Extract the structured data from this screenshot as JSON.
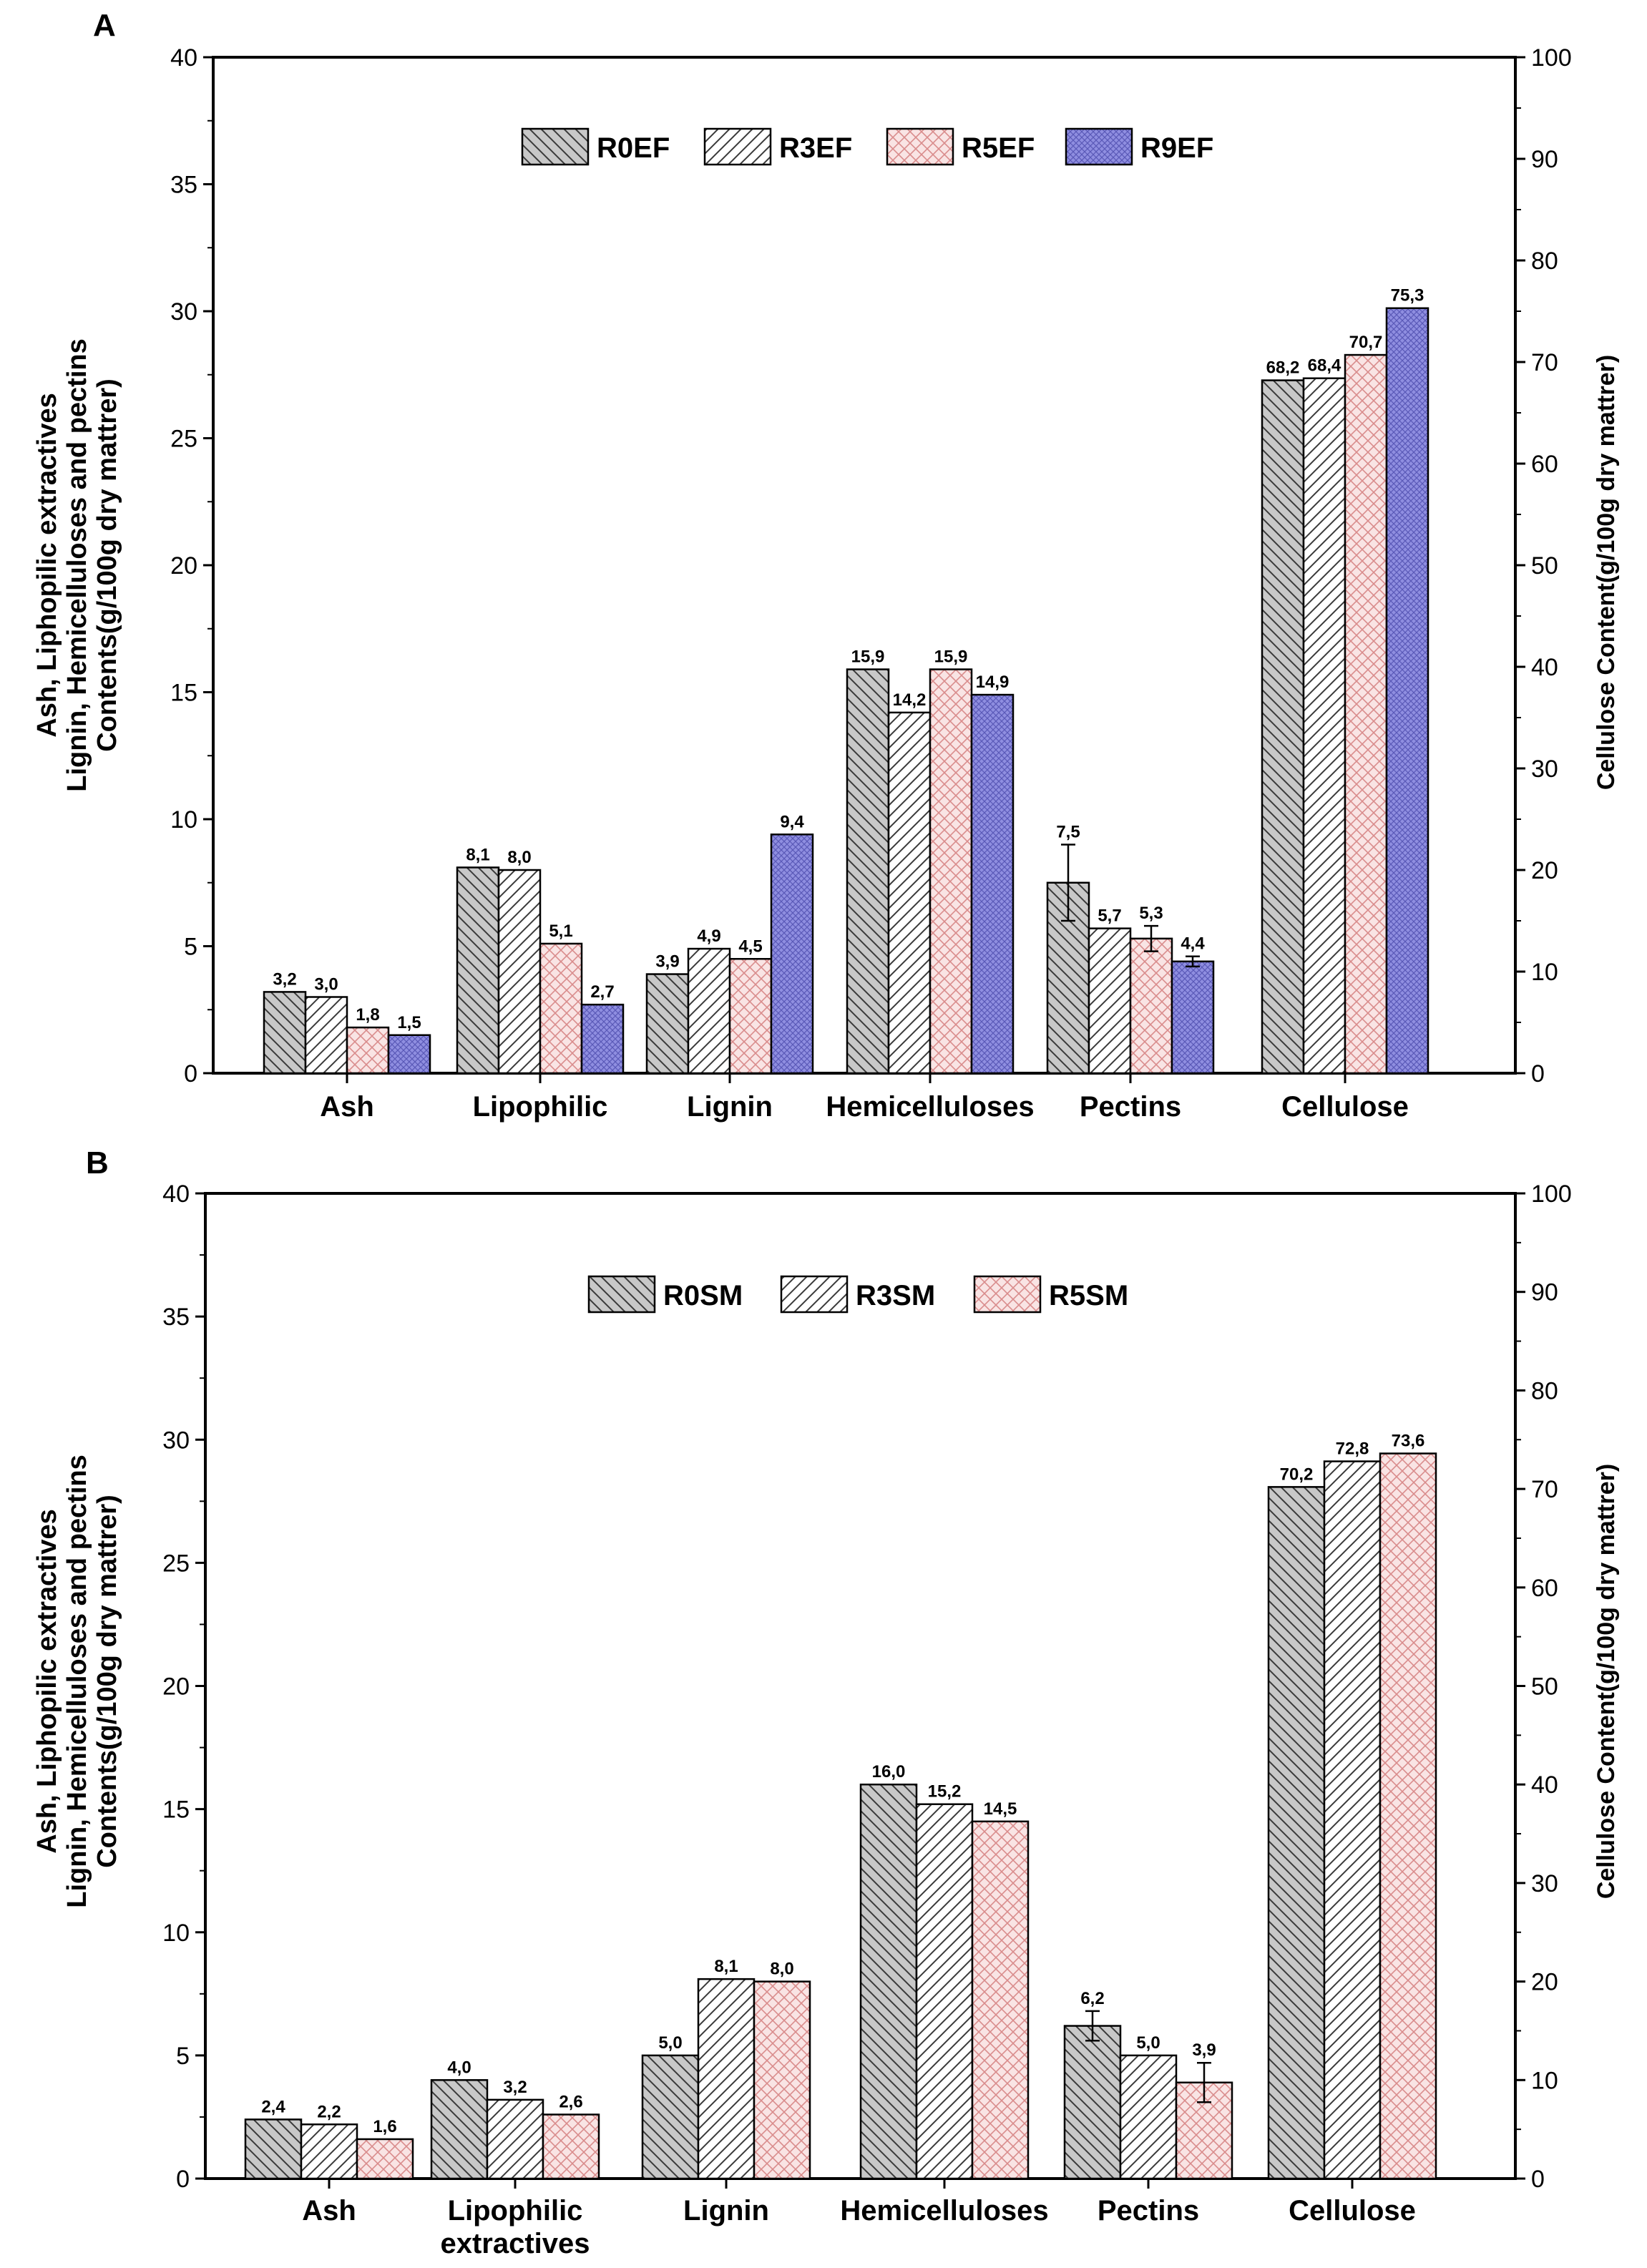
{
  "chart_data": [
    {
      "type": "bar",
      "panel_label": "A",
      "categories": [
        "Ash",
        "Lipophilic",
        "Lignin",
        "Hemicelluloses",
        "Pectins",
        "Cellulose"
      ],
      "y_axis_left": {
        "label_lines": [
          "Ash, Liphopilic extractives",
          "Lignin, Hemicelluloses and pectins",
          "Contents(g/100g dry mattrer)"
        ],
        "range": [
          0,
          40
        ],
        "ticks": [
          "0",
          "5",
          "10",
          "15",
          "20",
          "25",
          "30",
          "35",
          "40"
        ]
      },
      "y_axis_right": {
        "label": "Cellulose Content(g/100g dry mattrer)",
        "range": [
          0,
          100
        ],
        "ticks": [
          "0",
          "10",
          "20",
          "30",
          "40",
          "50",
          "60",
          "70",
          "80",
          "90",
          "100"
        ]
      },
      "series": [
        {
          "name": "R0EF",
          "color": "#c8c8c8",
          "pattern": "hatch-back",
          "values": [
            3.2,
            8.1,
            3.9,
            15.9,
            7.5,
            68.2
          ],
          "labels": [
            "3,2",
            "8,1",
            "3,9",
            "15,9",
            "7,5",
            "68,2"
          ],
          "errors": [
            0,
            0,
            0,
            0,
            1.5,
            0
          ]
        },
        {
          "name": "R3EF",
          "color": "#ffffff",
          "pattern": "hatch-forward",
          "values": [
            3.0,
            8.0,
            4.9,
            14.2,
            5.7,
            68.4
          ],
          "labels": [
            "3,0",
            "8,0",
            "4,9",
            "14,2",
            "5,7",
            "68,4"
          ],
          "errors": [
            0,
            0,
            0,
            0,
            0,
            0
          ]
        },
        {
          "name": "R5EF",
          "color": "#f7dcdc",
          "pattern": "cross",
          "values": [
            1.8,
            5.1,
            4.5,
            15.9,
            5.3,
            70.7
          ],
          "labels": [
            "1,8",
            "5,1",
            "4,5",
            "15,9",
            "5,3",
            "70,7"
          ],
          "errors": [
            0,
            0,
            0,
            0,
            0.5,
            0
          ]
        },
        {
          "name": "R9EF",
          "color": "#8f8ee0",
          "pattern": "fine-cross",
          "values": [
            1.5,
            2.7,
            9.4,
            14.9,
            4.4,
            75.3
          ],
          "labels": [
            "1,5",
            "2,7",
            "9,4",
            "14,9",
            "4,4",
            "75,3"
          ],
          "errors": [
            0,
            0,
            0,
            0,
            0.2,
            0
          ]
        }
      ],
      "note": "Cellulose values are plotted on the right axis (0-100)"
    },
    {
      "type": "bar",
      "panel_label": "B",
      "categories": [
        "Ash",
        "Lipophilic extractives",
        "Lignin",
        "Hemicelluloses",
        "Pectins",
        "Cellulose"
      ],
      "y_axis_left": {
        "label_lines": [
          "Ash, Liphopilic extractives",
          "Lignin, Hemicelluloses and pectins",
          "Contents(g/100g dry mattrer)"
        ],
        "range": [
          0,
          40
        ],
        "ticks": [
          "0",
          "5",
          "10",
          "15",
          "20",
          "25",
          "30",
          "35",
          "40"
        ]
      },
      "y_axis_right": {
        "label": "Cellulose Content(g/100g dry mattrer)",
        "range": [
          0,
          100
        ],
        "ticks": [
          "0",
          "10",
          "20",
          "30",
          "40",
          "50",
          "60",
          "70",
          "80",
          "90",
          "100"
        ]
      },
      "series": [
        {
          "name": "R0SM",
          "color": "#c8c8c8",
          "pattern": "hatch-back",
          "values": [
            2.4,
            4.0,
            5.0,
            16.0,
            6.2,
            70.2
          ],
          "labels": [
            "2,4",
            "4,0",
            "5,0",
            "16,0",
            "6,2",
            "70,2"
          ],
          "errors": [
            0,
            0,
            0,
            0,
            0.6,
            0
          ]
        },
        {
          "name": "R3SM",
          "color": "#ffffff",
          "pattern": "hatch-forward",
          "values": [
            2.2,
            3.2,
            8.1,
            15.2,
            5.0,
            72.8
          ],
          "labels": [
            "2,2",
            "3,2",
            "8,1",
            "15,2",
            "5,0",
            "72,8"
          ],
          "errors": [
            0,
            0,
            0,
            0,
            0,
            0
          ]
        },
        {
          "name": "R5SM",
          "color": "#f7dcdc",
          "pattern": "cross",
          "values": [
            1.6,
            2.6,
            8.0,
            14.5,
            3.9,
            73.6
          ],
          "labels": [
            "1,6",
            "2,6",
            "8,0",
            "14,5",
            "3,9",
            "73,6"
          ],
          "errors": [
            0,
            0,
            0,
            0,
            0.8,
            0
          ]
        }
      ],
      "note": "Cellulose values are plotted on the right axis (0-100)"
    }
  ]
}
